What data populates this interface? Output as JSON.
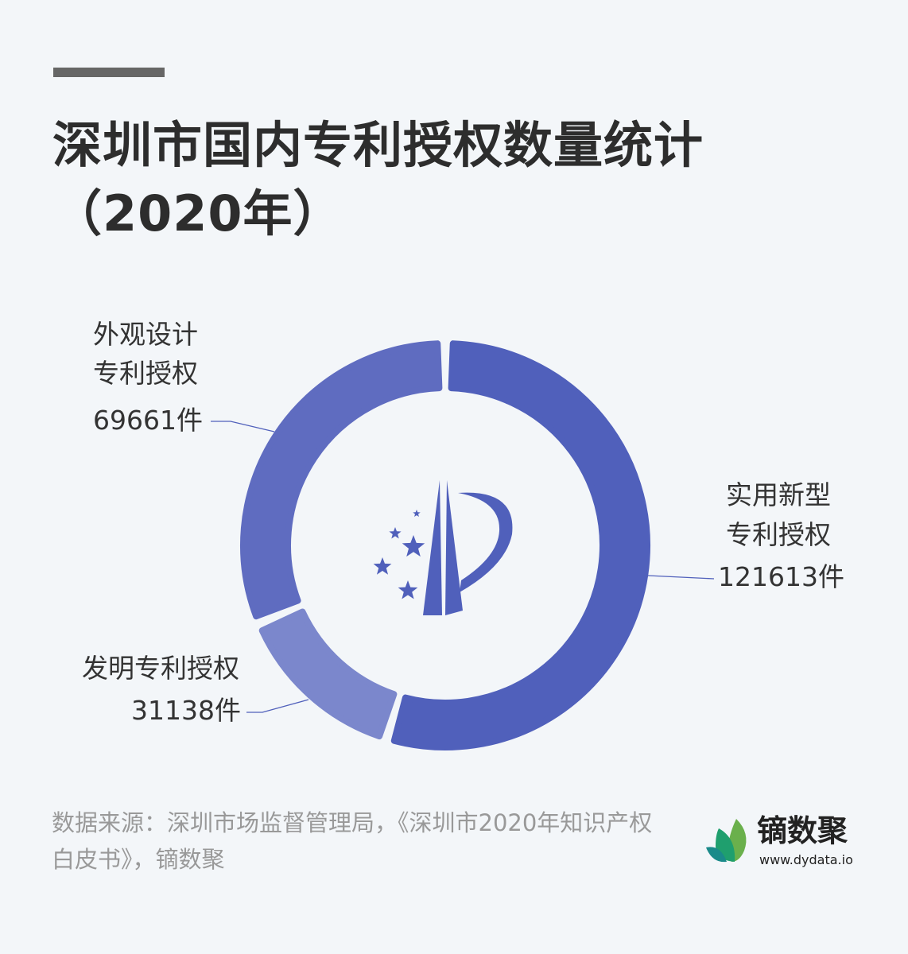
{
  "chart_data": {
    "type": "pie",
    "title": "深圳市国内专利授权数量统计（2020年）",
    "donut": true,
    "categories": [
      "实用新型专利授权",
      "发明专利授权",
      "外观设计专利授权"
    ],
    "values": [
      121613,
      31138,
      69661
    ],
    "value_labels": [
      "121613件",
      "31138件",
      "69661件"
    ],
    "label_lines": [
      [
        "实用新型",
        "专利授权"
      ],
      [
        "发明专利授权"
      ],
      [
        "外观设计",
        "专利授权"
      ]
    ],
    "colors": [
      "#5060bb",
      "#7b87cc",
      "#5f6cc0"
    ]
  },
  "source": "数据来源：深圳市场监督管理局，《深圳市2020年知识产权白皮书》，镝数聚",
  "brand": {
    "name": "镝数聚",
    "url": "www.dydata.io"
  },
  "center_logo": "patent-office-emblem"
}
